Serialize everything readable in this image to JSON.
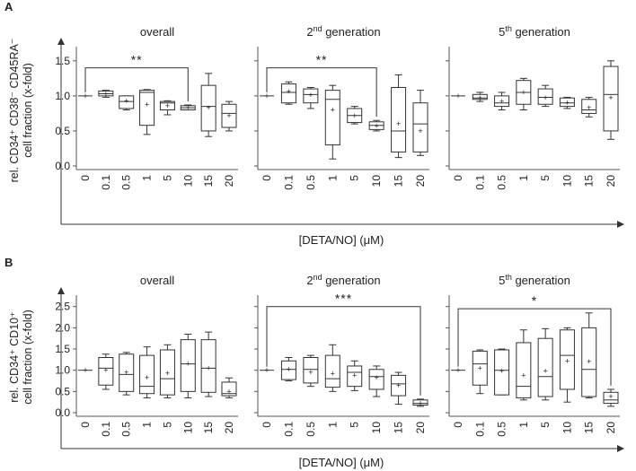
{
  "figure": {
    "x_axis_label": "[DETA/NO] (μM)",
    "categories": [
      "0",
      "0.1",
      "0.5",
      "1",
      "5",
      "10",
      "15",
      "20"
    ],
    "panels": [
      {
        "letter": "A",
        "ylabel_line1": "rel. CD34⁺ CD38⁻ CD45RA⁻",
        "ylabel_line2": "cell fraction (x-fold)",
        "ylim": [
          0,
          1.6
        ],
        "yticks": [
          "0.0",
          "0.5",
          "1.0",
          "1.5"
        ],
        "ytick_values": [
          0,
          0.5,
          1.0,
          1.5
        ],
        "subplots": [
          {
            "title": "overall",
            "title_sup": "",
            "title_rest": "",
            "sig": {
              "label": "**",
              "from": 0,
              "to": 5,
              "y": 1.4,
              "side": "right"
            },
            "boxes": [
              {
                "min": 1.0,
                "q1": 1.0,
                "median": 1.0,
                "q3": 1.0,
                "max": 1.0,
                "mean": 1.0
              },
              {
                "min": 0.98,
                "q1": 1.0,
                "median": 1.03,
                "q3": 1.07,
                "max": 1.08,
                "mean": 1.03
              },
              {
                "min": 0.8,
                "q1": 0.82,
                "median": 0.92,
                "q3": 1.0,
                "max": 1.0,
                "mean": 0.93
              },
              {
                "min": 0.45,
                "q1": 0.58,
                "median": 1.05,
                "q3": 1.08,
                "max": 1.09,
                "mean": 0.88
              },
              {
                "min": 0.73,
                "q1": 0.8,
                "median": 0.9,
                "q3": 0.92,
                "max": 0.93,
                "mean": 0.86
              },
              {
                "min": 0.8,
                "q1": 0.8,
                "median": 0.83,
                "q3": 0.86,
                "max": 0.87,
                "mean": 0.83
              },
              {
                "min": 0.42,
                "q1": 0.5,
                "median": 0.85,
                "q3": 1.15,
                "max": 1.32,
                "mean": 0.83
              },
              {
                "min": 0.5,
                "q1": 0.55,
                "median": 0.75,
                "q3": 0.88,
                "max": 0.92,
                "mean": 0.72
              }
            ]
          },
          {
            "title": "2",
            "title_sup": "nd",
            "title_rest": " generation",
            "sig": {
              "label": "**",
              "from": 0,
              "to": 5,
              "y": 1.4,
              "side": "right"
            },
            "boxes": [
              {
                "min": 1.0,
                "q1": 1.0,
                "median": 1.0,
                "q3": 1.0,
                "max": 1.0,
                "mean": 1.0
              },
              {
                "min": 0.88,
                "q1": 0.9,
                "median": 1.05,
                "q3": 1.17,
                "max": 1.2,
                "mean": 1.06
              },
              {
                "min": 0.82,
                "q1": 0.9,
                "median": 1.02,
                "q3": 1.1,
                "max": 1.12,
                "mean": 1.01
              },
              {
                "min": 0.1,
                "q1": 0.3,
                "median": 0.95,
                "q3": 1.08,
                "max": 1.15,
                "mean": 0.8
              },
              {
                "min": 0.6,
                "q1": 0.62,
                "median": 0.72,
                "q3": 0.82,
                "max": 0.85,
                "mean": 0.72
              },
              {
                "min": 0.5,
                "q1": 0.52,
                "median": 0.58,
                "q3": 0.63,
                "max": 0.65,
                "mean": 0.57
              },
              {
                "min": 0.12,
                "q1": 0.2,
                "median": 0.5,
                "q3": 1.12,
                "max": 1.3,
                "mean": 0.6
              },
              {
                "min": 0.15,
                "q1": 0.2,
                "median": 0.6,
                "q3": 0.9,
                "max": 1.08,
                "mean": 0.5
              }
            ]
          },
          {
            "title": "5",
            "title_sup": "th",
            "title_rest": " generation",
            "sig": null,
            "boxes": [
              {
                "min": 1.0,
                "q1": 1.0,
                "median": 1.0,
                "q3": 1.0,
                "max": 1.0,
                "mean": 1.0
              },
              {
                "min": 0.92,
                "q1": 0.95,
                "median": 0.97,
                "q3": 1.02,
                "max": 1.05,
                "mean": 0.97
              },
              {
                "min": 0.8,
                "q1": 0.85,
                "median": 0.9,
                "q3": 1.0,
                "max": 1.05,
                "mean": 0.92
              },
              {
                "min": 0.8,
                "q1": 0.88,
                "median": 1.05,
                "q3": 1.22,
                "max": 1.25,
                "mean": 1.05
              },
              {
                "min": 0.85,
                "q1": 0.88,
                "median": 0.98,
                "q3": 1.1,
                "max": 1.15,
                "mean": 0.97
              },
              {
                "min": 0.82,
                "q1": 0.85,
                "median": 0.9,
                "q3": 0.97,
                "max": 0.98,
                "mean": 0.9
              },
              {
                "min": 0.7,
                "q1": 0.75,
                "median": 0.8,
                "q3": 0.95,
                "max": 0.98,
                "mean": 0.83
              },
              {
                "min": 0.38,
                "q1": 0.5,
                "median": 1.02,
                "q3": 1.42,
                "max": 1.5,
                "mean": 0.97
              }
            ]
          }
        ]
      },
      {
        "letter": "B",
        "ylabel_line1": "rel. CD34⁺ CD10⁺",
        "ylabel_line2": "cell fraction (x-fold)",
        "ylim": [
          0,
          2.6
        ],
        "yticks": [
          "0.0",
          "0.5",
          "1.0",
          "1.5",
          "2.0",
          "2.5"
        ],
        "ytick_values": [
          0,
          0.5,
          1.0,
          1.5,
          2.0,
          2.5
        ],
        "subplots": [
          {
            "title": "overall",
            "title_sup": "",
            "title_rest": "",
            "sig": null,
            "boxes": [
              {
                "min": 1.0,
                "q1": 1.0,
                "median": 1.0,
                "q3": 1.0,
                "max": 1.0,
                "mean": 1.0
              },
              {
                "min": 0.55,
                "q1": 0.65,
                "median": 1.05,
                "q3": 1.3,
                "max": 1.38,
                "mean": 1.0
              },
              {
                "min": 0.42,
                "q1": 0.5,
                "median": 0.9,
                "q3": 1.38,
                "max": 1.42,
                "mean": 0.95
              },
              {
                "min": 0.35,
                "q1": 0.45,
                "median": 0.62,
                "q3": 1.35,
                "max": 1.55,
                "mean": 0.82
              },
              {
                "min": 0.35,
                "q1": 0.42,
                "median": 0.8,
                "q3": 1.48,
                "max": 1.6,
                "mean": 0.93
              },
              {
                "min": 0.35,
                "q1": 0.5,
                "median": 1.15,
                "q3": 1.72,
                "max": 1.85,
                "mean": 1.15
              },
              {
                "min": 0.38,
                "q1": 0.48,
                "median": 1.05,
                "q3": 1.72,
                "max": 1.9,
                "mean": 1.05
              },
              {
                "min": 0.35,
                "q1": 0.4,
                "median": 0.45,
                "q3": 0.72,
                "max": 0.82,
                "mean": 0.5
              }
            ]
          },
          {
            "title": "2",
            "title_sup": "nd",
            "title_rest": " generation",
            "sig": {
              "label": "***",
              "from": 0,
              "to": 7,
              "y": 2.5,
              "side": "right"
            },
            "boxes": [
              {
                "min": 1.0,
                "q1": 1.0,
                "median": 1.0,
                "q3": 1.0,
                "max": 1.0,
                "mean": 1.0
              },
              {
                "min": 0.75,
                "q1": 0.78,
                "median": 1.02,
                "q3": 1.22,
                "max": 1.3,
                "mean": 1.02
              },
              {
                "min": 0.62,
                "q1": 0.7,
                "median": 1.02,
                "q3": 1.3,
                "max": 1.35,
                "mean": 0.95
              },
              {
                "min": 0.5,
                "q1": 0.6,
                "median": 0.8,
                "q3": 1.35,
                "max": 1.6,
                "mean": 0.92
              },
              {
                "min": 0.52,
                "q1": 0.62,
                "median": 0.95,
                "q3": 1.1,
                "max": 1.22,
                "mean": 0.88
              },
              {
                "min": 0.38,
                "q1": 0.55,
                "median": 0.85,
                "q3": 1.02,
                "max": 1.1,
                "mean": 0.82
              },
              {
                "min": 0.2,
                "q1": 0.4,
                "median": 0.68,
                "q3": 0.88,
                "max": 0.95,
                "mean": 0.65
              },
              {
                "min": 0.15,
                "q1": 0.18,
                "median": 0.22,
                "q3": 0.3,
                "max": 0.32,
                "mean": 0.22
              }
            ]
          },
          {
            "title": "5",
            "title_sup": "th",
            "title_rest": " generation",
            "sig": {
              "label": "*",
              "from": 0,
              "to": 7,
              "y": 2.45,
              "side": "right"
            },
            "boxes": [
              {
                "min": 1.0,
                "q1": 1.0,
                "median": 1.0,
                "q3": 1.0,
                "max": 1.0,
                "mean": 1.0
              },
              {
                "min": 0.45,
                "q1": 0.65,
                "median": 1.15,
                "q3": 1.45,
                "max": 1.48,
                "mean": 1.05
              },
              {
                "min": 0.42,
                "q1": 0.42,
                "median": 1.0,
                "q3": 1.48,
                "max": 1.5,
                "mean": 0.98
              },
              {
                "min": 0.3,
                "q1": 0.35,
                "median": 0.62,
                "q3": 1.65,
                "max": 1.95,
                "mean": 0.88
              },
              {
                "min": 0.3,
                "q1": 0.38,
                "median": 0.85,
                "q3": 1.75,
                "max": 1.98,
                "mean": 0.98
              },
              {
                "min": 0.25,
                "q1": 0.55,
                "median": 1.35,
                "q3": 1.95,
                "max": 2.0,
                "mean": 1.22
              },
              {
                "min": 0.35,
                "q1": 0.38,
                "median": 1.02,
                "q3": 2.0,
                "max": 2.35,
                "mean": 1.2
              },
              {
                "min": 0.15,
                "q1": 0.22,
                "median": 0.3,
                "q3": 0.48,
                "max": 0.55,
                "mean": 0.38
              }
            ]
          }
        ]
      }
    ]
  },
  "chart_data": [
    {
      "type": "box",
      "title": "A: rel. CD34+ CD38- CD45RA- cell fraction (x-fold)",
      "xlabel": "[DETA/NO] (μM)",
      "ylabel": "rel. CD34+ CD38- CD45RA- cell fraction (x-fold)",
      "ylim": [
        0,
        1.6
      ],
      "categories": [
        "0",
        "0.1",
        "0.5",
        "1",
        "5",
        "10",
        "15",
        "20"
      ],
      "series": [
        {
          "name": "overall",
          "significance": "** (0 vs 10)"
        },
        {
          "name": "2nd generation",
          "significance": "** (0 vs 10)"
        },
        {
          "name": "5th generation",
          "significance": ""
        }
      ]
    },
    {
      "type": "box",
      "title": "B: rel. CD34+ CD10+ cell fraction (x-fold)",
      "xlabel": "[DETA/NO] (μM)",
      "ylabel": "rel. CD34+ CD10+ cell fraction (x-fold)",
      "ylim": [
        0,
        2.6
      ],
      "categories": [
        "0",
        "0.1",
        "0.5",
        "1",
        "5",
        "10",
        "15",
        "20"
      ],
      "series": [
        {
          "name": "overall",
          "significance": ""
        },
        {
          "name": "2nd generation",
          "significance": "*** (0 vs 20)"
        },
        {
          "name": "5th generation",
          "significance": "* (0 vs 20)"
        }
      ]
    }
  ]
}
